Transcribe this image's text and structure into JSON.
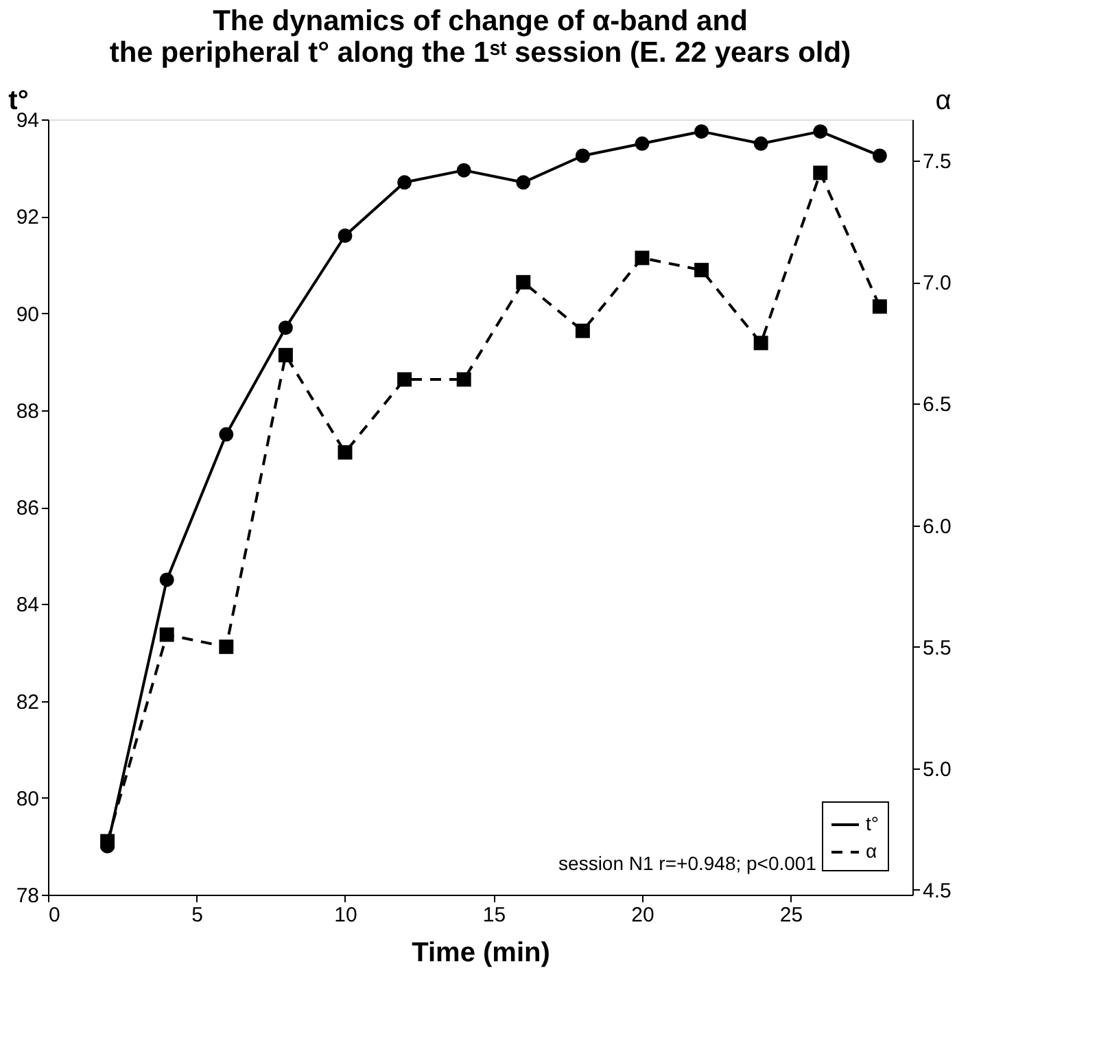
{
  "chart_data": {
    "type": "line",
    "title": [
      "The dynamics of change of α-band and",
      "the peripheral t° along the 1ˢᵗ session (E. 22 years old)"
    ],
    "xlabel": "Time (min)",
    "ylabel": "t°",
    "y2label": "α",
    "x": [
      2,
      4,
      6,
      8,
      10,
      12,
      14,
      16,
      18,
      20,
      22,
      24,
      26,
      28
    ],
    "series": [
      {
        "name": "t°",
        "color": "#000000",
        "marker": "circle",
        "line_style": "solid",
        "values": [
          79.0,
          84.5,
          87.5,
          89.7,
          91.6,
          92.7,
          92.95,
          92.7,
          93.25,
          93.5,
          93.75,
          93.5,
          93.75,
          93.25
        ]
      },
      {
        "name": "α",
        "color": "#000000",
        "marker": "square",
        "line_style": "dashed",
        "axis": "y2",
        "values": [
          4.7,
          5.55,
          5.5,
          6.7,
          6.3,
          6.6,
          6.6,
          7.0,
          6.8,
          7.1,
          7.05,
          6.75,
          7.45,
          6.9
        ]
      }
    ],
    "xlim": [
      0,
      29.1
    ],
    "xticks": [
      0,
      5,
      10,
      15,
      20,
      25
    ],
    "ylim": [
      78,
      94
    ],
    "yticks": [
      78,
      80,
      82,
      84,
      86,
      88,
      90,
      92,
      94
    ],
    "y2lim": [
      4.48,
      7.67
    ],
    "y2ticks": [
      {
        "value": 4.5,
        "label": "4.5"
      },
      {
        "value": 5,
        "label": "5.0"
      },
      {
        "value": 5.5,
        "label": "5.5"
      },
      {
        "value": 6,
        "label": "6.0"
      },
      {
        "value": 6.5,
        "label": "6.5"
      },
      {
        "value": 7,
        "label": "7.0"
      },
      {
        "value": 7.5,
        "label": "7.5"
      }
    ],
    "annotations": [
      "session N1 r=+0.948; p<0.001"
    ],
    "legend": "bottom right",
    "grid": false
  }
}
